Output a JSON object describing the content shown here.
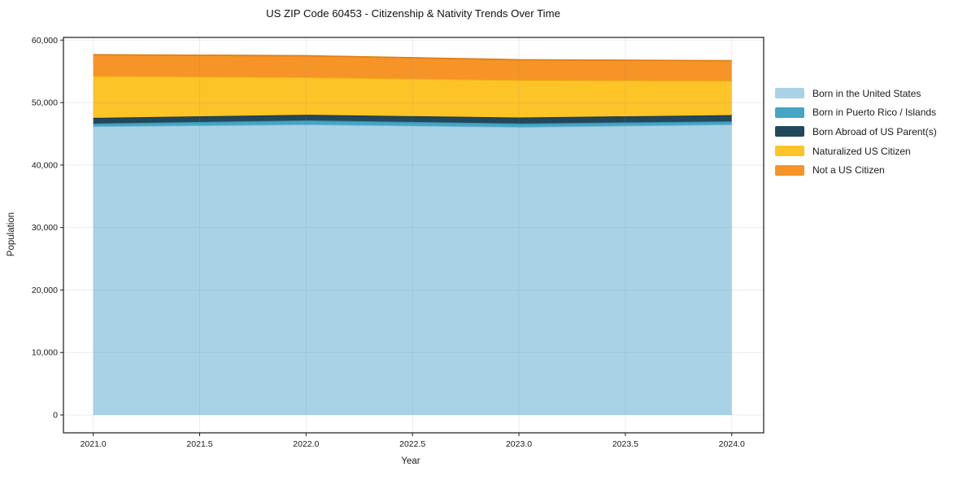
{
  "chart": {
    "title": "US ZIP Code 60453 - Citizenship & Nativity Trends Over Time",
    "xlabel": "Year",
    "ylabel": "Population"
  },
  "chart_data": {
    "type": "area",
    "stacked": true,
    "title": "US ZIP Code 60453 - Citizenship & Nativity Trends Over Time",
    "xlabel": "Year",
    "ylabel": "Population",
    "grid": true,
    "legend_position": "right-outside",
    "x": [
      2021,
      2022,
      2023,
      2024
    ],
    "xticks": [
      2021.0,
      2021.5,
      2022.0,
      2022.5,
      2023.0,
      2023.5,
      2024.0
    ],
    "xtick_labels": [
      "2021.0",
      "2021.5",
      "2022.0",
      "2022.5",
      "2023.0",
      "2023.5",
      "2024.0"
    ],
    "yticks": [
      0,
      10000,
      20000,
      30000,
      40000,
      50000,
      60000
    ],
    "ytick_labels": [
      "0",
      "10,000",
      "20,000",
      "30,000",
      "40,000",
      "50,000",
      "60,000"
    ],
    "xlim": [
      2020.86,
      2024.15
    ],
    "ylim": [
      -2860,
      60430
    ],
    "series": [
      {
        "name": "Born in the United States",
        "color": "#a8d3e6",
        "edge": "#7db8d2",
        "values": [
          46200,
          46500,
          46100,
          46500
        ]
      },
      {
        "name": "Born in Puerto Rico / Islands",
        "color": "#45a5c5",
        "edge": "#3590ae",
        "values": [
          450,
          650,
          550,
          500
        ]
      },
      {
        "name": "Born Abroad of US Parent(s)",
        "color": "#22485c",
        "edge": "#16323f",
        "values": [
          900,
          900,
          950,
          1000
        ]
      },
      {
        "name": "Naturalized US Citizen",
        "color": "#fdc427",
        "edge": "#f0ad0e",
        "values": [
          6700,
          6000,
          6000,
          5500
        ]
      },
      {
        "name": "Not a US Citizen",
        "color": "#f79428",
        "edge": "#e07f16",
        "values": [
          3400,
          3450,
          3250,
          3200
        ]
      }
    ]
  }
}
